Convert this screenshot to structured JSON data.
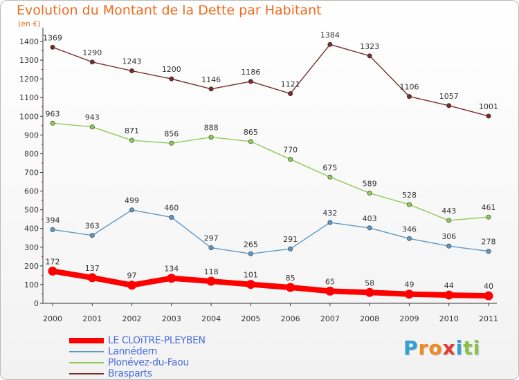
{
  "title": "Evolution du Montant de la Dette par Habitant",
  "subtitle": "(en €)",
  "logo": {
    "letters": [
      "P",
      "r",
      "o",
      "x",
      "i",
      "t",
      "i"
    ],
    "colors": [
      "#2f9fd7",
      "#f08a1c",
      "#f08a1c",
      "#e63a2e",
      "#2f9fd7",
      "#8bc34a",
      "#8bc34a"
    ]
  },
  "chart_data": {
    "type": "line",
    "title": "Evolution du Montant de la Dette par Habitant",
    "ylabel": "(en €)",
    "xlabel": "",
    "x": [
      "2000",
      "2001",
      "2002",
      "2003",
      "2004",
      "2005",
      "2006",
      "2007",
      "2008",
      "2009",
      "2010",
      "2011"
    ],
    "ylim": [
      0,
      1400
    ],
    "yticks": [
      0,
      100,
      200,
      300,
      400,
      500,
      600,
      700,
      800,
      900,
      1000,
      1100,
      1200,
      1300,
      1400
    ],
    "grid": false,
    "legend_position": "bottom-left",
    "series": [
      {
        "name": "Brasparts",
        "color": "#7a2a2a",
        "thick": false,
        "values": [
          1369,
          1290,
          1243,
          1200,
          1146,
          1186,
          1121,
          1384,
          1323,
          1106,
          1057,
          1001
        ]
      },
      {
        "name": "Plonévez-du-Faou",
        "color": "#8ecb53",
        "thick": false,
        "values": [
          963,
          943,
          871,
          856,
          888,
          865,
          770,
          675,
          589,
          528,
          443,
          461
        ]
      },
      {
        "name": "Lannédern",
        "color": "#5d99c6",
        "thick": false,
        "values": [
          394,
          363,
          499,
          460,
          297,
          265,
          291,
          432,
          403,
          346,
          306,
          278
        ]
      },
      {
        "name": "LE CLOïTRE-PLEYBEN",
        "color": "#ff0000",
        "thick": true,
        "values": [
          172,
          137,
          97,
          134,
          118,
          101,
          85,
          65,
          58,
          49,
          44,
          40
        ]
      }
    ],
    "legend_order": [
      "LE CLOïTRE-PLEYBEN",
      "Lannédern",
      "Plonévez-du-Faou",
      "Brasparts"
    ]
  }
}
